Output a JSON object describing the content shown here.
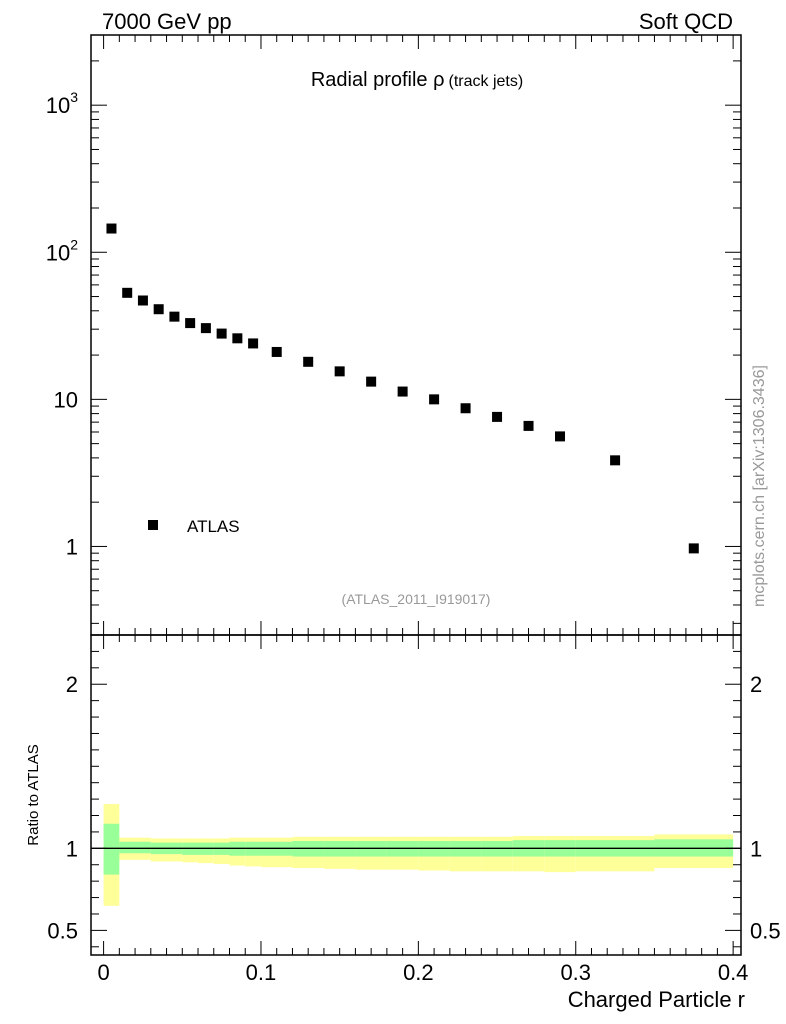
{
  "header": {
    "left": "7000 GeV pp",
    "right": "Soft QCD"
  },
  "watermark": "mcplots.cern.ch [arXiv:1306.3436]",
  "analysis_id": "(ATLAS_2011_I919017)",
  "chart_data": [
    {
      "type": "scatter",
      "title_main": "Radial profile ρ",
      "title_sub": "(track jets)",
      "yscale": "log",
      "ylim": [
        0.25,
        3000
      ],
      "xlim": [
        -0.008,
        0.405
      ],
      "ytick_labels": [
        "1",
        "10",
        "10",
        "10"
      ],
      "ytick_exponents": [
        "",
        "",
        "2",
        "3"
      ],
      "legend": {
        "position": "lower-left",
        "entries": [
          "ATLAS"
        ]
      },
      "series": [
        {
          "name": "ATLAS",
          "color": "#000000",
          "marker": "square",
          "x": [
            0.005,
            0.015,
            0.025,
            0.035,
            0.045,
            0.055,
            0.065,
            0.075,
            0.085,
            0.095,
            0.11,
            0.13,
            0.15,
            0.17,
            0.19,
            0.21,
            0.23,
            0.25,
            0.27,
            0.29,
            0.325,
            0.375
          ],
          "y": [
            145,
            53,
            47,
            41,
            36.5,
            33,
            30.5,
            28,
            26,
            24,
            21,
            18,
            15.5,
            13.2,
            11.3,
            10,
            8.7,
            7.6,
            6.6,
            5.6,
            3.85,
            0.97
          ]
        }
      ]
    },
    {
      "type": "area",
      "ylabel": "Ratio to ATLAS",
      "xlabel": "Charged Particle r",
      "ylim": [
        0.35,
        2.3
      ],
      "xlim": [
        -0.008,
        0.405
      ],
      "xtick_labels": [
        "0",
        "0.1",
        "0.2",
        "0.3",
        "0.4"
      ],
      "ytick_labels": [
        "0.5",
        "1",
        "2"
      ],
      "reference_line": 1,
      "bands": {
        "bin_edges": [
          0,
          0.01,
          0.02,
          0.03,
          0.04,
          0.05,
          0.06,
          0.07,
          0.08,
          0.09,
          0.1,
          0.12,
          0.14,
          0.16,
          0.18,
          0.2,
          0.22,
          0.24,
          0.26,
          0.28,
          0.3,
          0.35,
          0.4
        ],
        "yellow": {
          "color": "#ffff99",
          "lo": [
            0.65,
            0.93,
            0.93,
            0.92,
            0.92,
            0.915,
            0.91,
            0.905,
            0.895,
            0.89,
            0.885,
            0.88,
            0.875,
            0.87,
            0.87,
            0.865,
            0.86,
            0.86,
            0.86,
            0.855,
            0.86,
            0.88
          ],
          "hi": [
            1.27,
            1.065,
            1.065,
            1.06,
            1.06,
            1.06,
            1.06,
            1.06,
            1.065,
            1.065,
            1.065,
            1.07,
            1.07,
            1.07,
            1.07,
            1.07,
            1.07,
            1.07,
            1.075,
            1.075,
            1.075,
            1.085
          ]
        },
        "green": {
          "color": "#99ff99",
          "lo": [
            0.84,
            0.97,
            0.97,
            0.965,
            0.965,
            0.96,
            0.96,
            0.96,
            0.955,
            0.955,
            0.955,
            0.95,
            0.95,
            0.95,
            0.95,
            0.95,
            0.95,
            0.95,
            0.95,
            0.95,
            0.95,
            0.95
          ],
          "hi": [
            1.15,
            1.04,
            1.04,
            1.035,
            1.035,
            1.035,
            1.035,
            1.035,
            1.04,
            1.04,
            1.04,
            1.045,
            1.045,
            1.045,
            1.045,
            1.045,
            1.045,
            1.045,
            1.05,
            1.05,
            1.05,
            1.055
          ]
        }
      }
    }
  ]
}
